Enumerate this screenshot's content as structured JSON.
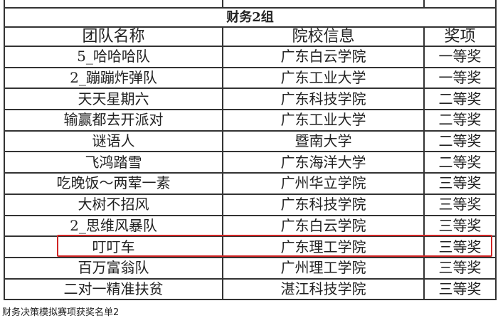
{
  "table": {
    "group_title": "财务2组",
    "headers": [
      "团队名称",
      "院校信息",
      "奖项"
    ],
    "rows": [
      [
        "5_哈哈哈队",
        "广东白云学院",
        "一等奖"
      ],
      [
        "2_蹦蹦炸弹队",
        "广东工业大学",
        "一等奖"
      ],
      [
        "天天星期六",
        "广东科技学院",
        "二等奖"
      ],
      [
        "输赢都去开派对",
        "广东工业大学",
        "二等奖"
      ],
      [
        "谜语人",
        "暨南大学",
        "二等奖"
      ],
      [
        "飞鸿踏雪",
        "广东海洋大学",
        "二等奖"
      ],
      [
        "吃晚饭～两荤一素",
        "广州华立学院",
        "三等奖"
      ],
      [
        "大树不招风",
        "广东科技学院",
        "三等奖"
      ],
      [
        "2_思维风暴队",
        "广东白云学院",
        "三等奖"
      ],
      [
        "叮叮车",
        "广东理工学院",
        "三等奖"
      ],
      [
        "百万富翁队",
        "广州理工学院",
        "三等奖"
      ],
      [
        "二对一精准扶贫",
        "湛江科技学院",
        "三等奖"
      ]
    ],
    "highlighted_row": "叮叮车",
    "highlight_color": "#d02525"
  },
  "caption": "财务决策模拟赛项获奖名单2"
}
